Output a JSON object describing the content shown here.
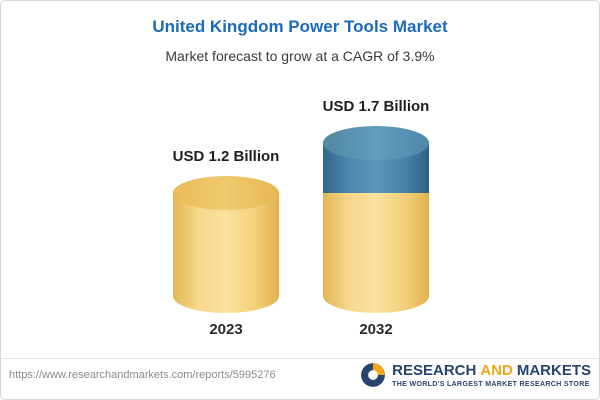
{
  "chart_data": {
    "type": "bar",
    "style": "3d-cylinder",
    "title": "United Kingdom Power Tools Market",
    "subtitle": "Market forecast to grow at a CAGR of 3.9%",
    "unit": "USD Billion",
    "categories": [
      "2023",
      "2032"
    ],
    "values": [
      1.2,
      1.7
    ],
    "xlabel": "",
    "ylabel": "",
    "legend": false,
    "bars": [
      {
        "category": "2023",
        "value": 1.2,
        "label": "USD 1.2 Billion",
        "segments": [
          {
            "value": 1.2,
            "color": "#F6D47E",
            "color_key": "gold"
          }
        ]
      },
      {
        "category": "2032",
        "value": 1.7,
        "label": "USD 1.7 Billion",
        "segments": [
          {
            "value": 1.2,
            "color": "#F6D47E",
            "color_key": "gold"
          },
          {
            "value": 0.5,
            "color": "#4A80A6",
            "color_key": "blue"
          }
        ]
      }
    ]
  },
  "footer": {
    "url": "https://www.researchandmarkets.com/reports/5995276",
    "logo": {
      "word1": "RESEARCH",
      "word2": "AND",
      "word3": "MARKETS",
      "tagline": "THE WORLD'S LARGEST MARKET RESEARCH STORE"
    }
  },
  "colors": {
    "title_blue": "#1A6BB8",
    "subtitle_gray": "#3a3a3a",
    "bar_gold": "#F6D47E",
    "bar_gold_cap": "#ECC45F",
    "bar_blue": "#4A80A6",
    "bar_blue_cap": "#5E98BC",
    "logo_navy": "#27446F",
    "logo_orange": "#F2A71B",
    "url_gray": "#8a8a8a"
  }
}
